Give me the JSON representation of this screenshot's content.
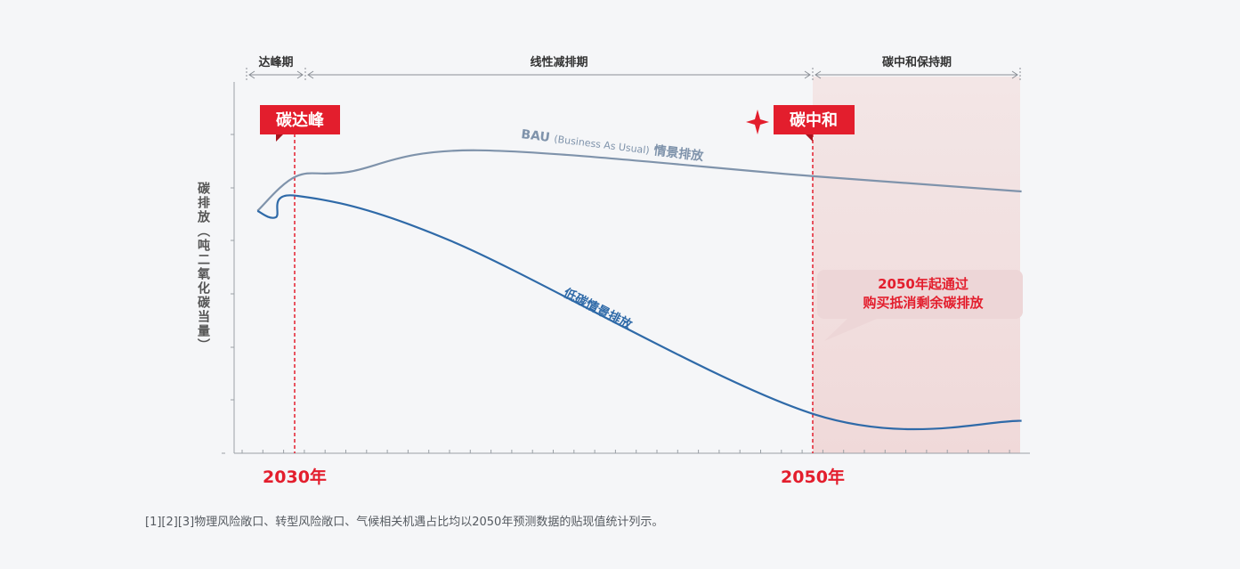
{
  "chart_data": {
    "type": "line",
    "title": "",
    "xlabel": "",
    "ylabel": "碳排放（吨二氧化碳当量）",
    "x_ticks": [
      "2030年",
      "2050年"
    ],
    "phases": [
      "达峰期",
      "线性减排期",
      "碳中和保持期"
    ],
    "milestones": [
      "碳达峰",
      "碳中和"
    ],
    "series": [
      {
        "name_prefix": "BAU",
        "name_suffix": "(Business As Usual)",
        "name_cn": "情景排放",
        "color": "#7f93ab",
        "points": [
          [
            2028.5,
            5.6
          ],
          [
            2030,
            6.4
          ],
          [
            2032,
            6.5
          ],
          [
            2037,
            7.0
          ],
          [
            2050,
            6.4
          ],
          [
            2058,
            6.05
          ]
        ]
      },
      {
        "name": "低碳情景排放",
        "color": "#2f6aa8",
        "points": [
          [
            2028.5,
            5.6
          ],
          [
            2029.2,
            5.45
          ],
          [
            2030,
            5.95
          ],
          [
            2036,
            4.9
          ],
          [
            2050,
            0.9
          ],
          [
            2058,
            0.75
          ]
        ]
      }
    ],
    "annotation": [
      "2050年起通过",
      "购买抵消剩余碳排放"
    ]
  },
  "footnote": "[1][2][3]物理风险敞口、转型风险敞口、气候相关机遇占比均以2050年预测数据的贴现值统计列示。",
  "colors": {
    "red": "#e31e2d",
    "dark_red": "#b31b25",
    "bau": "#7f93ab",
    "low": "#2f6aa8",
    "shade": "#f1dcdc",
    "annotation_bg": "#edd6d7"
  }
}
